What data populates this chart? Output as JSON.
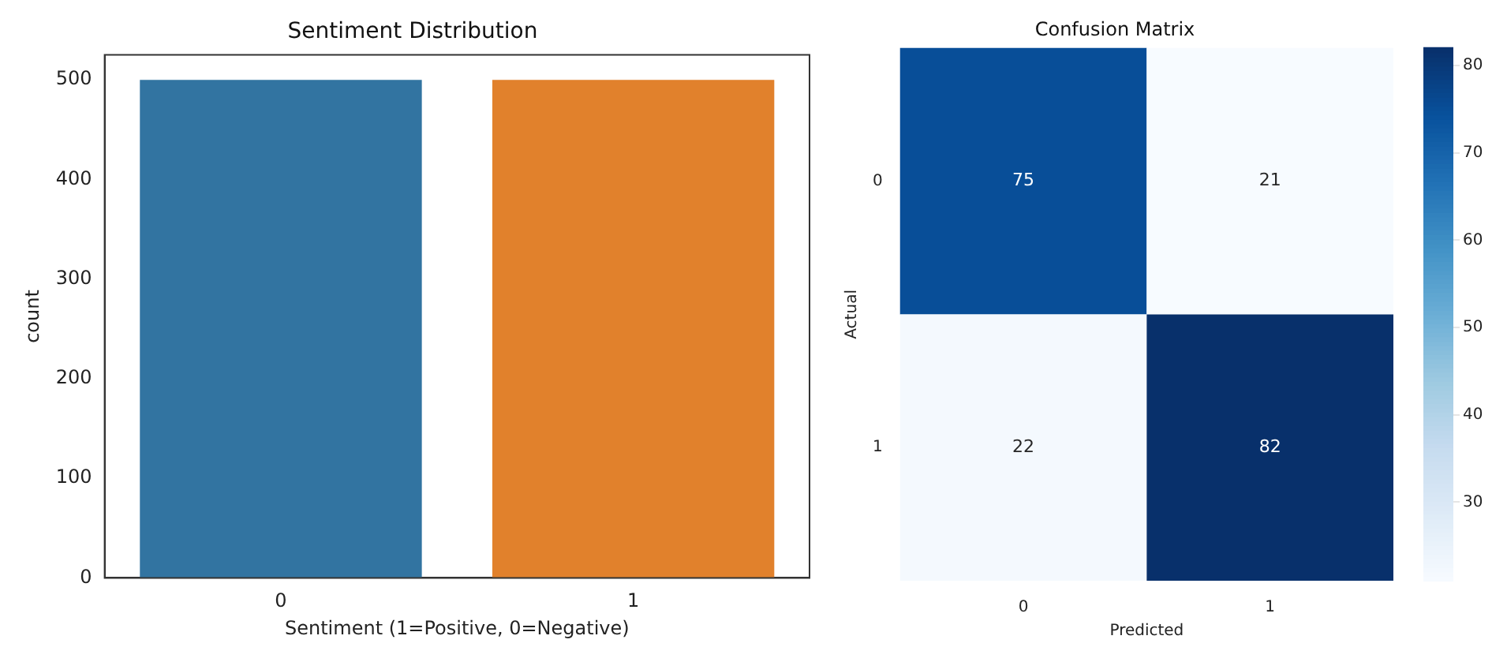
{
  "chart_data": [
    {
      "type": "bar",
      "title": "Sentiment Distribution",
      "xlabel": "Sentiment (1=Positive, 0=Negative)",
      "ylabel": "count",
      "categories": [
        "0",
        "1"
      ],
      "values": [
        500,
        500
      ],
      "colors": [
        "#3274a1",
        "#e1812c"
      ],
      "ylim": [
        0,
        525
      ],
      "yticks": [
        0,
        100,
        200,
        300,
        400,
        500
      ],
      "grid": false,
      "legend": false
    },
    {
      "type": "heatmap",
      "title": "Confusion Matrix",
      "xlabel": "Predicted",
      "ylabel": "Actual",
      "categories": [
        "0",
        "1"
      ],
      "y_categories": [
        "0",
        "1"
      ],
      "cells": [
        [
          75,
          21
        ],
        [
          22,
          82
        ]
      ],
      "clim": [
        21,
        82
      ],
      "cticks": [
        30,
        40,
        50,
        60,
        70,
        80
      ],
      "data_labels": true
    }
  ]
}
